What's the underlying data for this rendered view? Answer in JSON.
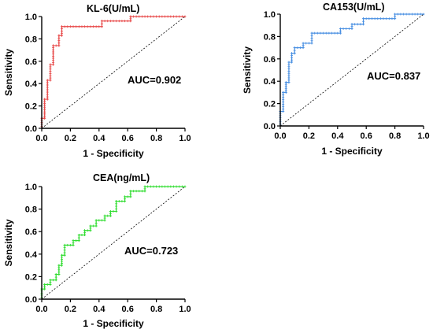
{
  "chart_data": [
    {
      "type": "line",
      "title": "KL-6(U/mL)",
      "xlabel": "1 - Specificity",
      "ylabel": "Sensitivity",
      "xlim": [
        0,
        1.0
      ],
      "ylim": [
        0,
        1.0
      ],
      "xticks": [
        "0.0",
        "0.2",
        "0.4",
        "0.6",
        "0.8",
        "1.0"
      ],
      "yticks": [
        "0.0",
        "0.2",
        "0.4",
        "0.6",
        "0.8",
        "1.0"
      ],
      "annotation": "AUC=0.902",
      "color": "#e84a4a",
      "reference_line": "diagonal dashed",
      "series": [
        {
          "x": [
            0,
            0,
            0.02,
            0.02,
            0.04,
            0.04,
            0.06,
            0.06,
            0.08,
            0.08,
            0.12,
            0.12,
            0.14,
            0.14,
            0.42,
            0.42,
            0.62,
            0.62,
            1.0
          ],
          "y": [
            0,
            0.09,
            0.09,
            0.26,
            0.26,
            0.43,
            0.43,
            0.57,
            0.57,
            0.74,
            0.74,
            0.83,
            0.83,
            0.91,
            0.91,
            0.96,
            0.96,
            1.0,
            1.0
          ]
        }
      ]
    },
    {
      "type": "line",
      "title": "CA153(U/mL)",
      "xlabel": "1 - Specificity",
      "ylabel": "Sensitivity",
      "xlim": [
        0,
        1.0
      ],
      "ylim": [
        0,
        1.0
      ],
      "xticks": [
        "0.0",
        "0.2",
        "0.4",
        "0.6",
        "0.8",
        "1.0"
      ],
      "yticks": [
        "0.0",
        "0.2",
        "0.4",
        "0.6",
        "0.8",
        "1.0"
      ],
      "annotation": "AUC=0.837",
      "color": "#4a90e2",
      "reference_line": "diagonal dashed",
      "series": [
        {
          "x": [
            0,
            0,
            0.02,
            0.02,
            0.04,
            0.04,
            0.06,
            0.06,
            0.08,
            0.08,
            0.1,
            0.1,
            0.16,
            0.16,
            0.22,
            0.22,
            0.42,
            0.42,
            0.5,
            0.5,
            0.58,
            0.58,
            0.8,
            0.8,
            1.0
          ],
          "y": [
            0,
            0.13,
            0.13,
            0.3,
            0.3,
            0.39,
            0.39,
            0.57,
            0.57,
            0.65,
            0.65,
            0.7,
            0.7,
            0.74,
            0.74,
            0.83,
            0.83,
            0.87,
            0.87,
            0.91,
            0.91,
            0.96,
            0.96,
            1.0,
            1.0
          ]
        }
      ]
    },
    {
      "type": "line",
      "title": "CEA(ng/mL)",
      "xlabel": "1 - Specificity",
      "ylabel": "Sensitivity",
      "xlim": [
        0,
        1.0
      ],
      "ylim": [
        0,
        1.0
      ],
      "xticks": [
        "0.0",
        "0.2",
        "0.4",
        "0.6",
        "0.8",
        "1.0"
      ],
      "yticks": [
        "0.0",
        "0.2",
        "0.4",
        "0.6",
        "0.8",
        "1.0"
      ],
      "annotation": "AUC=0.723",
      "color": "#33dd33",
      "reference_line": "diagonal dashed",
      "series": [
        {
          "x": [
            0,
            0,
            0.02,
            0.02,
            0.06,
            0.06,
            0.1,
            0.1,
            0.12,
            0.12,
            0.14,
            0.14,
            0.16,
            0.16,
            0.22,
            0.22,
            0.26,
            0.26,
            0.3,
            0.3,
            0.34,
            0.34,
            0.38,
            0.38,
            0.44,
            0.44,
            0.48,
            0.48,
            0.52,
            0.52,
            0.58,
            0.58,
            0.62,
            0.62,
            0.72,
            0.72,
            1.0
          ],
          "y": [
            0,
            0.09,
            0.09,
            0.13,
            0.13,
            0.17,
            0.17,
            0.22,
            0.22,
            0.3,
            0.3,
            0.39,
            0.39,
            0.48,
            0.48,
            0.52,
            0.52,
            0.57,
            0.57,
            0.61,
            0.61,
            0.65,
            0.65,
            0.7,
            0.7,
            0.74,
            0.74,
            0.78,
            0.78,
            0.87,
            0.87,
            0.91,
            0.91,
            0.96,
            0.96,
            1.0,
            1.0
          ]
        }
      ]
    }
  ]
}
